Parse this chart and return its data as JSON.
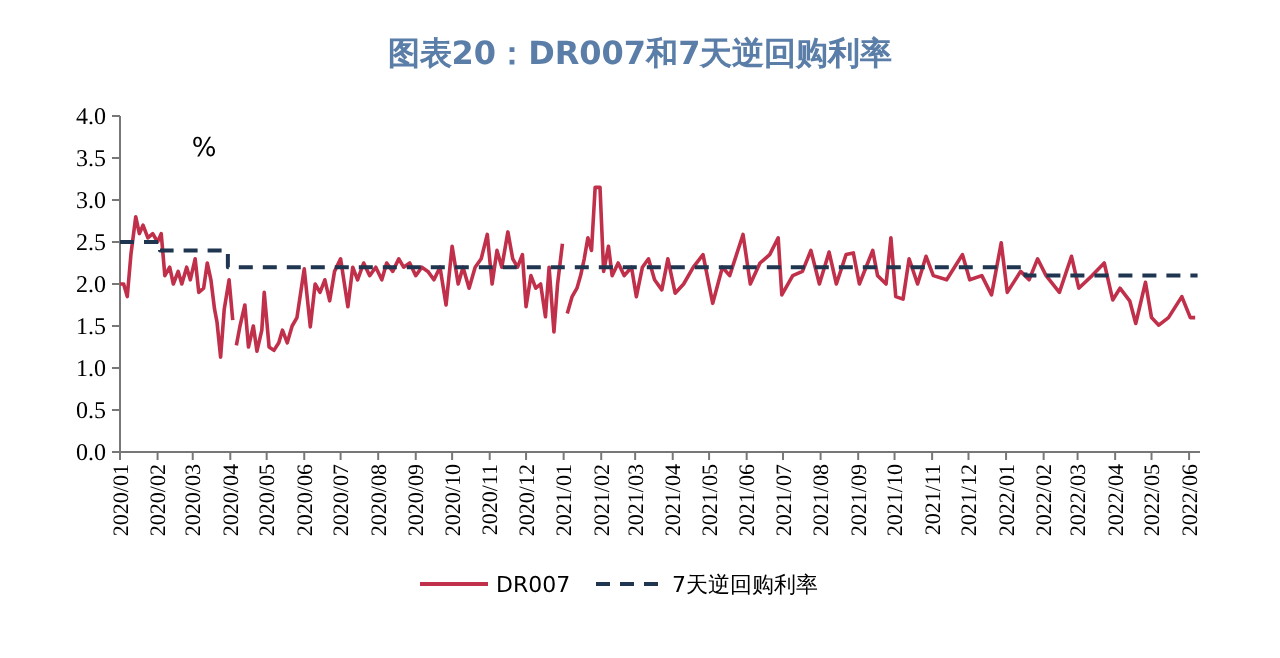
{
  "chart_data": {
    "type": "line",
    "title": "图表20：DR007和7天逆回购利率",
    "ylabel": "%",
    "legend": "bottom",
    "xlim": [
      "2020-01-01",
      "2022-06-10"
    ],
    "xticks": [
      {
        "value": "2020-01-01",
        "label": "2020/01"
      },
      {
        "value": "2020-02-01",
        "label": "2020/02"
      },
      {
        "value": "2020-03-01",
        "label": "2020/03"
      },
      {
        "value": "2020-04-01",
        "label": "2020/04"
      },
      {
        "value": "2020-05-01",
        "label": "2020/05"
      },
      {
        "value": "2020-06-01",
        "label": "2020/06"
      },
      {
        "value": "2020-07-01",
        "label": "2020/07"
      },
      {
        "value": "2020-08-01",
        "label": "2020/08"
      },
      {
        "value": "2020-09-01",
        "label": "2020/09"
      },
      {
        "value": "2020-10-01",
        "label": "2020/10"
      },
      {
        "value": "2020-11-01",
        "label": "2020/11"
      },
      {
        "value": "2020-12-01",
        "label": "2020/12"
      },
      {
        "value": "2021-01-01",
        "label": "2021/01"
      },
      {
        "value": "2021-02-01",
        "label": "2021/02"
      },
      {
        "value": "2021-03-01",
        "label": "2021/03"
      },
      {
        "value": "2021-04-01",
        "label": "2021/04"
      },
      {
        "value": "2021-05-01",
        "label": "2021/05"
      },
      {
        "value": "2021-06-01",
        "label": "2021/06"
      },
      {
        "value": "2021-07-01",
        "label": "2021/07"
      },
      {
        "value": "2021-08-01",
        "label": "2021/08"
      },
      {
        "value": "2021-09-01",
        "label": "2021/09"
      },
      {
        "value": "2021-10-01",
        "label": "2021/10"
      },
      {
        "value": "2021-11-01",
        "label": "2021/11"
      },
      {
        "value": "2021-12-01",
        "label": "2021/12"
      },
      {
        "value": "2022-01-01",
        "label": "2022/01"
      },
      {
        "value": "2022-02-01",
        "label": "2022/02"
      },
      {
        "value": "2022-03-01",
        "label": "2022/03"
      },
      {
        "value": "2022-04-01",
        "label": "2022/04"
      },
      {
        "value": "2022-05-01",
        "label": "2022/05"
      },
      {
        "value": "2022-06-01",
        "label": "2022/06"
      }
    ],
    "ylim": [
      0,
      4
    ],
    "yticks": [
      {
        "value": 0,
        "label": "0.0"
      },
      0.5,
      {
        "value": 1,
        "label": "1.0"
      },
      1.5,
      {
        "value": 2,
        "label": "2.0"
      },
      2.5,
      {
        "value": 3,
        "label": "3.0"
      },
      3.5,
      {
        "value": 4,
        "label": "4.0"
      }
    ],
    "series": [
      {
        "name": "DR007",
        "color": "#c0304a",
        "x": [
          "2020-01-01",
          "2020-01-04",
          "2020-01-07",
          "2020-01-10",
          "2020-01-14",
          "2020-01-17",
          "2020-01-20",
          "2020-01-24",
          "2020-01-28",
          "2020-02-01",
          "2020-02-04",
          "2020-02-07",
          "2020-02-11",
          "2020-02-14",
          "2020-02-18",
          "2020-02-21",
          "2020-02-25",
          "2020-02-28",
          "2020-03-03",
          "2020-03-06",
          "2020-03-10",
          "2020-03-13",
          "2020-03-16",
          "2020-03-19",
          "2020-03-21",
          "2020-03-24",
          "2020-03-27",
          "2020-03-31",
          "2020-04-03",
          "2020-04-04",
          "2020-04-06",
          "2020-04-09",
          "2020-04-13",
          "2020-04-16",
          "2020-04-20",
          "2020-04-23",
          "2020-04-27",
          "2020-04-29",
          "2020-05-03",
          "2020-05-07",
          "2020-05-11",
          "2020-05-14",
          "2020-05-18",
          "2020-05-22",
          "2020-05-26",
          "2020-06-01",
          "2020-06-06",
          "2020-06-10",
          "2020-06-14",
          "2020-06-18",
          "2020-06-22",
          "2020-06-26",
          "2020-07-01",
          "2020-07-07",
          "2020-07-11",
          "2020-07-15",
          "2020-07-20",
          "2020-07-25",
          "2020-07-30",
          "2020-08-04",
          "2020-08-08",
          "2020-08-13",
          "2020-08-18",
          "2020-08-22",
          "2020-08-27",
          "2020-09-01",
          "2020-09-06",
          "2020-09-11",
          "2020-09-16",
          "2020-09-21",
          "2020-09-26",
          "2020-10-01",
          "2020-10-06",
          "2020-10-10",
          "2020-10-15",
          "2020-10-20",
          "2020-10-25",
          "2020-10-30",
          "2020-11-03",
          "2020-11-07",
          "2020-11-11",
          "2020-11-16",
          "2020-11-20",
          "2020-11-24",
          "2020-11-28",
          "2020-12-01",
          "2020-12-05",
          "2020-12-09",
          "2020-12-13",
          "2020-12-17",
          "2020-12-20",
          "2020-12-24",
          "2020-12-27",
          "2020-12-31",
          "2021-01-02",
          "2021-01-04",
          "2021-01-08",
          "2021-01-12",
          "2021-01-15",
          "2021-01-18",
          "2021-01-21",
          "2021-01-24",
          "2021-01-27",
          "2021-01-31",
          "2021-02-03",
          "2021-02-07",
          "2021-02-10",
          "2021-02-15",
          "2021-02-20",
          "2021-02-26",
          "2021-03-02",
          "2021-03-07",
          "2021-03-12",
          "2021-03-17",
          "2021-03-23",
          "2021-03-28",
          "2021-04-03",
          "2021-04-10",
          "2021-04-18",
          "2021-04-26",
          "2021-05-04",
          "2021-05-12",
          "2021-05-18",
          "2021-05-29",
          "2021-06-04",
          "2021-06-12",
          "2021-06-20",
          "2021-06-27",
          "2021-06-30",
          "2021-07-09",
          "2021-07-17",
          "2021-07-24",
          "2021-07-31",
          "2021-08-08",
          "2021-08-14",
          "2021-08-22",
          "2021-08-28",
          "2021-09-02",
          "2021-09-13",
          "2021-09-17",
          "2021-09-24",
          "2021-09-28",
          "2021-10-02",
          "2021-10-08",
          "2021-10-13",
          "2021-10-20",
          "2021-10-27",
          "2021-11-02",
          "2021-11-13",
          "2021-11-26",
          "2021-12-02",
          "2021-12-12",
          "2021-12-20",
          "2021-12-28",
          "2022-01-02",
          "2022-01-13",
          "2022-01-20",
          "2022-01-27",
          "2022-02-03",
          "2022-02-14",
          "2022-02-24",
          "2022-03-02",
          "2022-03-13",
          "2022-03-23",
          "2022-03-30",
          "2022-04-05",
          "2022-04-13",
          "2022-04-18",
          "2022-04-26",
          "2022-05-01",
          "2022-05-07",
          "2022-05-15",
          "2022-05-26",
          "2022-06-02",
          "2022-06-06"
        ],
        "values": [
          2.0,
          2.0,
          1.85,
          2.35,
          2.8,
          2.6,
          2.7,
          2.55,
          2.6,
          2.5,
          2.6,
          2.1,
          2.2,
          2.0,
          2.15,
          2.0,
          2.2,
          2.05,
          2.3,
          1.9,
          1.95,
          2.25,
          2.05,
          1.7,
          1.55,
          1.13,
          1.7,
          2.05,
          1.57,
          null,
          1.27,
          1.5,
          1.75,
          1.25,
          1.5,
          1.2,
          1.45,
          1.9,
          1.25,
          1.21,
          1.3,
          1.45,
          1.3,
          1.5,
          1.6,
          2.18,
          1.49,
          2.0,
          1.9,
          2.05,
          1.8,
          2.15,
          2.3,
          1.73,
          2.2,
          2.05,
          2.25,
          2.1,
          2.2,
          2.05,
          2.25,
          2.15,
          2.3,
          2.2,
          2.25,
          2.1,
          2.2,
          2.15,
          2.05,
          2.2,
          1.75,
          2.45,
          2.0,
          2.2,
          1.95,
          2.2,
          2.3,
          2.59,
          2.0,
          2.4,
          2.2,
          2.62,
          2.3,
          2.2,
          2.35,
          1.73,
          2.1,
          1.95,
          2.0,
          1.61,
          2.2,
          1.43,
          2.0,
          2.48,
          null,
          1.65,
          1.85,
          1.95,
          2.1,
          2.3,
          2.55,
          2.4,
          3.15,
          3.15,
          2.15,
          2.45,
          2.1,
          2.25,
          2.1,
          2.2,
          1.85,
          2.2,
          2.3,
          2.05,
          1.93,
          2.3,
          1.89,
          2.0,
          2.2,
          2.35,
          1.77,
          2.2,
          2.1,
          2.59,
          2.0,
          2.25,
          2.35,
          2.55,
          1.87,
          2.1,
          2.15,
          2.4,
          2.0,
          2.38,
          2.0,
          2.35,
          2.37,
          2.0,
          2.4,
          2.1,
          2.0,
          2.55,
          1.85,
          1.82,
          2.3,
          2.0,
          2.33,
          2.1,
          2.05,
          2.35,
          2.05,
          2.1,
          1.87,
          2.49,
          1.9,
          2.15,
          2.05,
          2.3,
          2.1,
          1.9,
          2.33,
          1.95,
          2.1,
          2.25,
          1.81,
          1.95,
          1.8,
          1.53,
          2.02,
          1.6,
          1.51,
          1.6,
          1.85,
          1.6,
          1.6
        ]
      },
      {
        "name": "7天逆回购利率",
        "color": "#1f3550",
        "type": "step",
        "line_style": "dashed",
        "x": [
          "2020-01-01",
          "2020-02-03",
          "2020-03-30",
          "2022-01-17",
          "2022-06-08"
        ],
        "values": [
          2.5,
          2.4,
          2.2,
          2.1,
          2.1
        ]
      }
    ]
  }
}
